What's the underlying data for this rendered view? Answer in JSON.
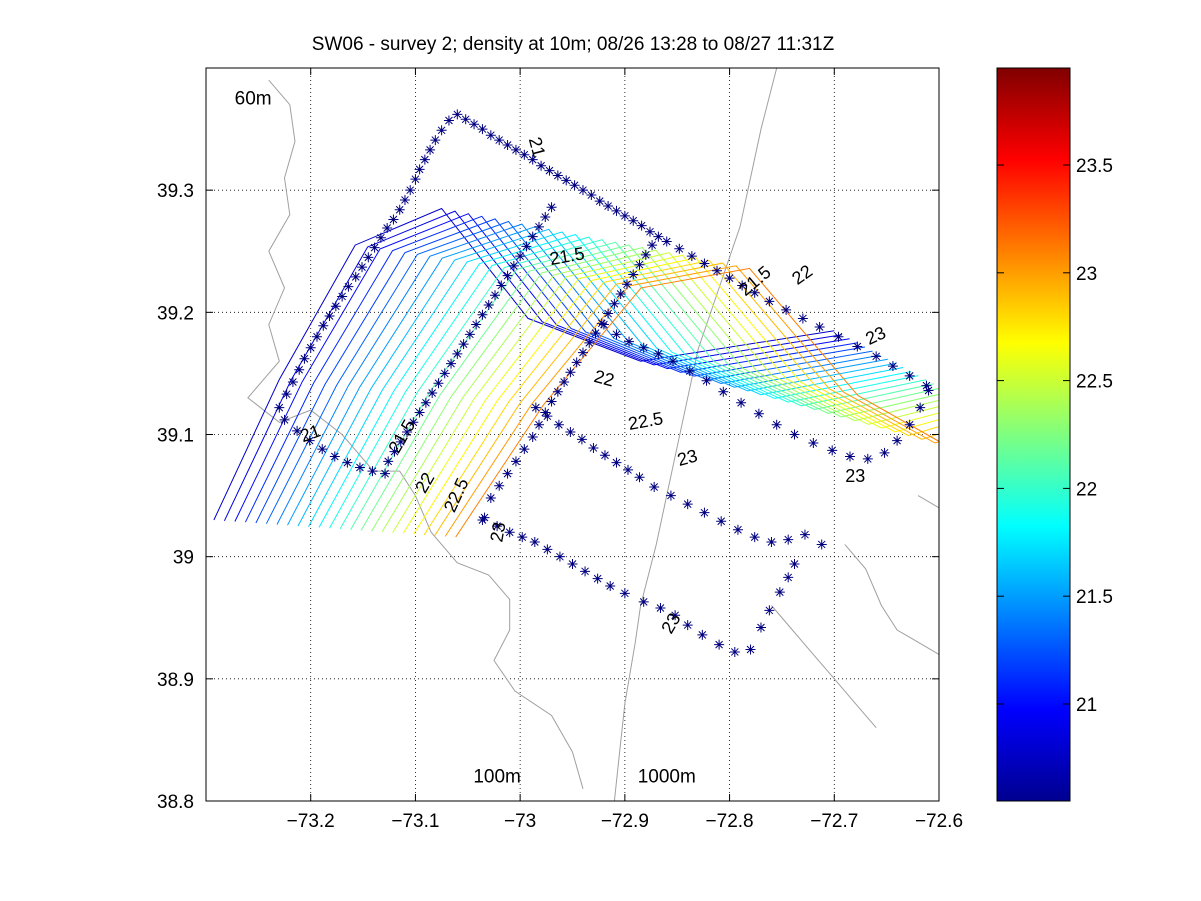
{
  "chart_data": {
    "type": "contour",
    "title": "SW06 - survey 2; density at 10m; 08/26 13:28 to 08/27 11:31Z",
    "xlabel": "",
    "ylabel": "",
    "xlim": [
      -73.3,
      -72.6
    ],
    "ylim": [
      38.8,
      39.4
    ],
    "x_ticks": [
      -73.2,
      -73.1,
      -73.0,
      -72.9,
      -72.8,
      -72.7,
      -72.6
    ],
    "x_tick_labels": [
      "−73.2",
      "−73.1",
      "−73",
      "−72.9",
      "−72.8",
      "−72.7",
      "−72.6"
    ],
    "y_ticks": [
      38.8,
      38.9,
      39.0,
      39.1,
      39.2,
      39.3
    ],
    "y_tick_labels": [
      "38.8",
      "38.9",
      "39",
      "39.1",
      "39.2",
      "39.3"
    ],
    "grid": "dotted",
    "colormap": "jet",
    "colorbar": {
      "range": [
        20.55,
        23.95
      ],
      "ticks": [
        21,
        21.5,
        22,
        22.5,
        23,
        23.5
      ],
      "tick_labels": [
        "21",
        "21.5",
        "22",
        "22.5",
        "23",
        "23.5"
      ]
    },
    "isobath_labels": [
      {
        "text": "60m",
        "x": -73.255,
        "y": 39.37
      },
      {
        "text": "100m",
        "x": -73.022,
        "y": 38.815
      },
      {
        "text": "1000m",
        "x": -72.86,
        "y": 38.815
      }
    ],
    "contour_labels": [
      {
        "text": "21",
        "x": -73.2,
        "y": 39.1,
        "rotation": -20
      },
      {
        "text": "21.5",
        "x": -73.112,
        "y": 39.098,
        "rotation": -60
      },
      {
        "text": "22",
        "x": -73.09,
        "y": 39.06,
        "rotation": -60
      },
      {
        "text": "22.5",
        "x": -73.06,
        "y": 39.05,
        "rotation": -65
      },
      {
        "text": "23",
        "x": -73.02,
        "y": 39.02,
        "rotation": -80
      },
      {
        "text": "21",
        "x": -72.985,
        "y": 39.335,
        "rotation": 75
      },
      {
        "text": "21.5",
        "x": -72.955,
        "y": 39.245,
        "rotation": -10
      },
      {
        "text": "22",
        "x": -72.92,
        "y": 39.145,
        "rotation": 15
      },
      {
        "text": "22.5",
        "x": -72.88,
        "y": 39.11,
        "rotation": -10
      },
      {
        "text": "23",
        "x": -72.84,
        "y": 39.08,
        "rotation": -15
      },
      {
        "text": "21.5",
        "x": -72.775,
        "y": 39.225,
        "rotation": -40
      },
      {
        "text": "22",
        "x": -72.73,
        "y": 39.23,
        "rotation": -35
      },
      {
        "text": "23",
        "x": -72.66,
        "y": 39.18,
        "rotation": -25
      },
      {
        "text": "23",
        "x": -72.68,
        "y": 39.065,
        "rotation": 0
      },
      {
        "text": "23",
        "x": -72.855,
        "y": 38.945,
        "rotation": -60
      }
    ],
    "contour_levels": [
      20.8,
      20.9,
      21.0,
      21.1,
      21.2,
      21.3,
      21.4,
      21.5,
      21.6,
      21.7,
      21.8,
      21.9,
      22.0,
      22.1,
      22.2,
      22.3,
      22.4,
      22.5,
      22.6,
      22.7,
      22.8,
      22.9,
      23.0,
      23.1
    ],
    "stations": [
      [
        -73.23,
        39.122
      ],
      [
        -73.223,
        39.133
      ],
      [
        -73.217,
        39.143
      ],
      [
        -73.211,
        39.153
      ],
      [
        -73.206,
        39.162
      ],
      [
        -73.2,
        39.171
      ],
      [
        -73.194,
        39.18
      ],
      [
        -73.188,
        39.189
      ],
      [
        -73.182,
        39.197
      ],
      [
        -73.176,
        39.205
      ],
      [
        -73.17,
        39.213
      ],
      [
        -73.164,
        39.221
      ],
      [
        -73.157,
        39.229
      ],
      [
        -73.151,
        39.237
      ],
      [
        -73.145,
        39.245
      ],
      [
        -73.139,
        39.253
      ],
      [
        -73.133,
        39.261
      ],
      [
        -73.127,
        39.269
      ],
      [
        -73.121,
        39.276
      ],
      [
        -73.115,
        39.284
      ],
      [
        -73.11,
        39.292
      ],
      [
        -73.105,
        39.3
      ],
      [
        -73.1,
        39.309
      ],
      [
        -73.096,
        39.317
      ],
      [
        -73.091,
        39.325
      ],
      [
        -73.086,
        39.333
      ],
      [
        -73.081,
        39.341
      ],
      [
        -73.075,
        39.349
      ],
      [
        -73.068,
        39.357
      ],
      [
        -73.06,
        39.362
      ],
      [
        -73.052,
        39.358
      ],
      [
        -73.044,
        39.354
      ],
      [
        -73.036,
        39.35
      ],
      [
        -73.028,
        39.345
      ],
      [
        -73.02,
        39.341
      ],
      [
        -73.012,
        39.337
      ],
      [
        -73.004,
        39.333
      ],
      [
        -72.996,
        39.329
      ],
      [
        -72.988,
        39.325
      ],
      [
        -72.98,
        39.32
      ],
      [
        -72.972,
        39.316
      ],
      [
        -72.964,
        39.312
      ],
      [
        -72.956,
        39.308
      ],
      [
        -72.948,
        39.304
      ],
      [
        -72.94,
        39.3
      ],
      [
        -72.932,
        39.296
      ],
      [
        -72.924,
        39.291
      ],
      [
        -72.916,
        39.287
      ],
      [
        -72.908,
        39.283
      ],
      [
        -72.9,
        39.279
      ],
      [
        -72.892,
        39.275
      ],
      [
        -72.884,
        39.271
      ],
      [
        -72.876,
        39.266
      ],
      [
        -72.868,
        39.262
      ],
      [
        -72.86,
        39.258
      ],
      [
        -72.848,
        39.252
      ],
      [
        -72.836,
        39.246
      ],
      [
        -72.824,
        39.24
      ],
      [
        -72.812,
        39.234
      ],
      [
        -72.8,
        39.228
      ],
      [
        -72.788,
        39.222
      ],
      [
        -72.776,
        39.216
      ],
      [
        -72.762,
        39.209
      ],
      [
        -72.746,
        39.202
      ],
      [
        -72.73,
        39.195
      ],
      [
        -72.714,
        39.188
      ],
      [
        -72.696,
        39.18
      ],
      [
        -72.678,
        39.172
      ],
      [
        -72.66,
        39.164
      ],
      [
        -72.644,
        39.156
      ],
      [
        -72.628,
        39.148
      ],
      [
        -72.612,
        39.14
      ],
      [
        -73.225,
        39.112
      ],
      [
        -73.213,
        39.103
      ],
      [
        -73.201,
        39.095
      ],
      [
        -73.189,
        39.088
      ],
      [
        -73.177,
        39.082
      ],
      [
        -73.165,
        39.077
      ],
      [
        -73.153,
        39.073
      ],
      [
        -73.141,
        39.07
      ],
      [
        -73.129,
        39.068
      ],
      [
        -73.126,
        39.078
      ],
      [
        -73.12,
        39.086
      ],
      [
        -73.114,
        39.094
      ],
      [
        -73.108,
        39.102
      ],
      [
        -73.102,
        39.11
      ],
      [
        -73.096,
        39.118
      ],
      [
        -73.09,
        39.126
      ],
      [
        -73.084,
        39.134
      ],
      [
        -73.078,
        39.142
      ],
      [
        -73.072,
        39.15
      ],
      [
        -73.066,
        39.158
      ],
      [
        -73.06,
        39.166
      ],
      [
        -73.054,
        39.174
      ],
      [
        -73.048,
        39.182
      ],
      [
        -73.042,
        39.19
      ],
      [
        -73.036,
        39.198
      ],
      [
        -73.03,
        39.206
      ],
      [
        -73.024,
        39.214
      ],
      [
        -73.018,
        39.222
      ],
      [
        -73.012,
        39.23
      ],
      [
        -73.006,
        39.238
      ],
      [
        -73.0,
        39.246
      ],
      [
        -72.994,
        39.254
      ],
      [
        -72.988,
        39.262
      ],
      [
        -72.982,
        39.27
      ],
      [
        -72.976,
        39.278
      ],
      [
        -72.97,
        39.286
      ],
      [
        -73.036,
        39.03
      ],
      [
        -73.028,
        39.048
      ],
      [
        -73.02,
        39.058
      ],
      [
        -73.012,
        39.068
      ],
      [
        -73.004,
        39.078
      ],
      [
        -72.996,
        39.088
      ],
      [
        -72.988,
        39.098
      ],
      [
        -72.982,
        39.108
      ],
      [
        -72.976,
        39.118
      ],
      [
        -72.97,
        39.127
      ],
      [
        -72.964,
        39.135
      ],
      [
        -72.958,
        39.143
      ],
      [
        -72.952,
        39.151
      ],
      [
        -72.946,
        39.159
      ],
      [
        -72.94,
        39.167
      ],
      [
        -72.934,
        39.175
      ],
      [
        -72.928,
        39.183
      ],
      [
        -72.922,
        39.191
      ],
      [
        -72.916,
        39.199
      ],
      [
        -72.91,
        39.207
      ],
      [
        -72.904,
        39.215
      ],
      [
        -72.898,
        39.223
      ],
      [
        -72.892,
        39.231
      ],
      [
        -72.886,
        39.239
      ],
      [
        -72.88,
        39.247
      ],
      [
        -72.874,
        39.255
      ],
      [
        -72.985,
        39.122
      ],
      [
        -72.974,
        39.115
      ],
      [
        -72.963,
        39.108
      ],
      [
        -72.952,
        39.102
      ],
      [
        -72.941,
        39.096
      ],
      [
        -72.93,
        39.089
      ],
      [
        -72.919,
        39.083
      ],
      [
        -72.908,
        39.077
      ],
      [
        -72.897,
        39.071
      ],
      [
        -72.886,
        39.065
      ],
      [
        -72.872,
        39.057
      ],
      [
        -72.856,
        39.05
      ],
      [
        -72.84,
        39.043
      ],
      [
        -72.824,
        39.036
      ],
      [
        -72.808,
        39.029
      ],
      [
        -72.792,
        39.022
      ],
      [
        -72.776,
        39.016
      ],
      [
        -72.76,
        39.012
      ],
      [
        -72.744,
        39.014
      ],
      [
        -72.728,
        39.018
      ],
      [
        -72.712,
        39.01
      ],
      [
        -73.034,
        39.032
      ],
      [
        -73.022,
        39.025
      ],
      [
        -73.01,
        39.02
      ],
      [
        -72.998,
        39.016
      ],
      [
        -72.986,
        39.012
      ],
      [
        -72.974,
        39.006
      ],
      [
        -72.962,
        39.0
      ],
      [
        -72.95,
        38.994
      ],
      [
        -72.938,
        38.988
      ],
      [
        -72.926,
        38.982
      ],
      [
        -72.914,
        38.976
      ],
      [
        -72.9,
        38.97
      ],
      [
        -72.882,
        38.963
      ],
      [
        -72.866,
        38.958
      ],
      [
        -72.852,
        38.952
      ],
      [
        -72.84,
        38.944
      ],
      [
        -72.826,
        38.936
      ],
      [
        -72.81,
        38.928
      ],
      [
        -72.795,
        38.922
      ],
      [
        -72.78,
        38.924
      ],
      [
        -72.77,
        38.942
      ],
      [
        -72.762,
        38.956
      ],
      [
        -72.752,
        38.971
      ],
      [
        -72.744,
        38.983
      ],
      [
        -72.738,
        38.994
      ],
      [
        -72.92,
        39.19
      ],
      [
        -72.908,
        39.182
      ],
      [
        -72.896,
        39.176
      ],
      [
        -72.882,
        39.171
      ],
      [
        -72.868,
        39.166
      ],
      [
        -72.854,
        39.16
      ],
      [
        -72.838,
        39.152
      ],
      [
        -72.822,
        39.144
      ],
      [
        -72.806,
        39.135
      ],
      [
        -72.789,
        39.126
      ],
      [
        -72.772,
        39.117
      ],
      [
        -72.755,
        39.108
      ],
      [
        -72.738,
        39.1
      ],
      [
        -72.72,
        39.093
      ],
      [
        -72.702,
        39.087
      ],
      [
        -72.685,
        39.082
      ],
      [
        -72.668,
        39.08
      ],
      [
        -72.652,
        39.085
      ],
      [
        -72.64,
        39.095
      ],
      [
        -72.628,
        39.108
      ],
      [
        -72.618,
        39.122
      ],
      [
        -72.61,
        39.136
      ]
    ]
  },
  "colors": {
    "marker": "#000080",
    "coast": "#a0a0a0"
  }
}
